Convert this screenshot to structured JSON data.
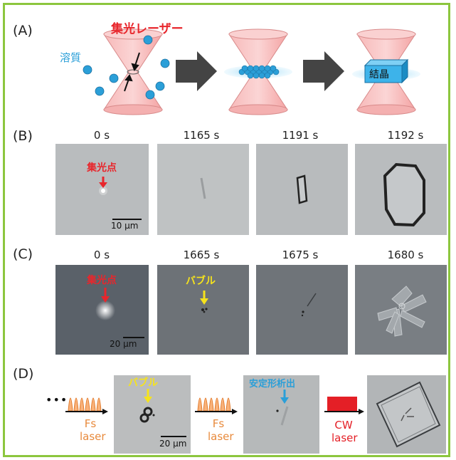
{
  "panels": {
    "a": {
      "label": "(A)",
      "laser_label": "集光レーザー",
      "solute_label": "溶質",
      "crystal_label": "結晶"
    },
    "b": {
      "label": "(B)",
      "times": [
        "0 s",
        "1165 s",
        "1191 s",
        "1192 s"
      ],
      "focus_label": "集光点",
      "scale_label": "10 µm"
    },
    "c": {
      "label": "(C)",
      "times": [
        "0 s",
        "1665 s",
        "1675 s",
        "1680 s"
      ],
      "focus_label": "集光点",
      "bubble_label": "バブル",
      "scale_label": "20 µm"
    },
    "d": {
      "label": "(D)",
      "ellipsis": "•••",
      "fs_laser_1": [
        "Fs",
        "laser"
      ],
      "bubble_label": "バブル",
      "scale_label": "20 µm",
      "fs_laser_2": [
        "Fs",
        "laser"
      ],
      "stable_label": "安定形析出",
      "cw_laser": [
        "CW",
        "laser"
      ]
    }
  },
  "colors": {
    "border": "#8cc63e",
    "laser_pink": "#f4a6a6",
    "solute_blue": "#2b9fd8",
    "red_label": "#e8262c",
    "yellow_label": "#f6e31c",
    "orange_laser": "#e88a3c",
    "cw_red": "#e41f26"
  }
}
